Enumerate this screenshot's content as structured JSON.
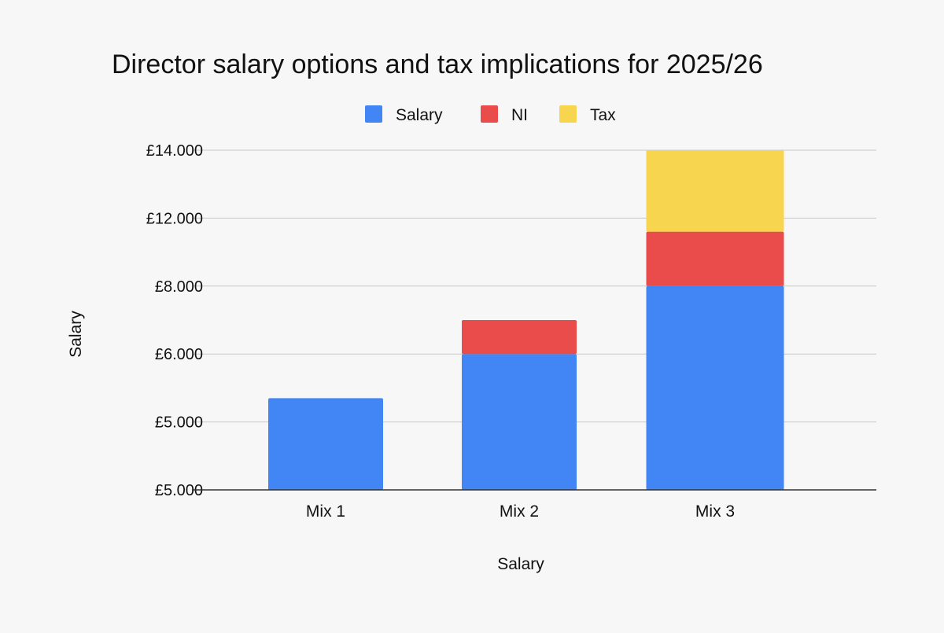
{
  "chart_data": {
    "type": "bar",
    "stacked": true,
    "title": "Director salary options and tax implications for 2025/26",
    "xlabel": "Salary",
    "ylabel": "Salary",
    "categories": [
      "Mix 1",
      "Mix 2",
      "Mix 3"
    ],
    "y_tick_labels": [
      "£5.000",
      "£5.000",
      "£6.000",
      "£8.000",
      "£12.000",
      "£14.000"
    ],
    "ylim": [
      0,
      5
    ],
    "grid": true,
    "legend_position": "top-center",
    "series": [
      {
        "name": "Salary",
        "color": "#4285f4",
        "values": [
          1.35,
          2.0,
          3.0
        ]
      },
      {
        "name": "NI",
        "color": "#ea4b4b",
        "values": [
          0,
          0.5,
          0.8
        ]
      },
      {
        "name": "Tax",
        "color": "#f8d54e",
        "values": [
          0,
          0,
          1.2
        ]
      }
    ]
  }
}
